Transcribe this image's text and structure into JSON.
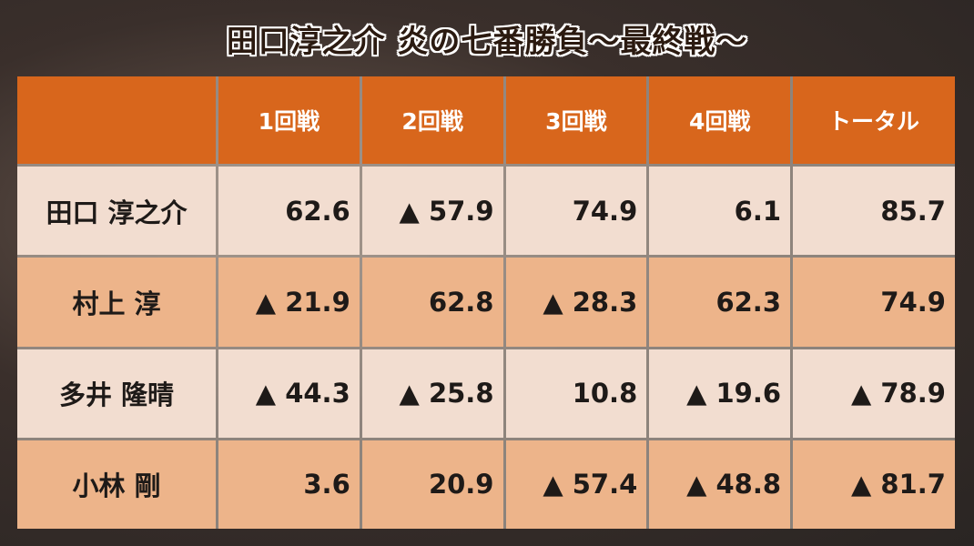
{
  "header": {
    "title": "田口淳之介 炎の七番勝負〜最終戦〜"
  },
  "table": {
    "columns": [
      "1回戦",
      "2回戦",
      "3回戦",
      "4回戦",
      "トータル"
    ],
    "rows": [
      [
        "田口 淳之介",
        "62.6",
        "▲ 57.9",
        "74.9",
        "6.1",
        "85.7"
      ],
      [
        "村上 淳",
        "▲ 21.9",
        "62.8",
        "▲ 28.3",
        "62.3",
        "74.9"
      ],
      [
        "多井 隆晴",
        "▲ 44.3",
        "▲ 25.8",
        "10.8",
        "▲ 19.6",
        "▲ 78.9"
      ],
      [
        "小林 剛",
        "3.6",
        "20.9",
        "▲ 57.4",
        "▲ 48.8",
        "▲ 81.7"
      ]
    ]
  }
}
